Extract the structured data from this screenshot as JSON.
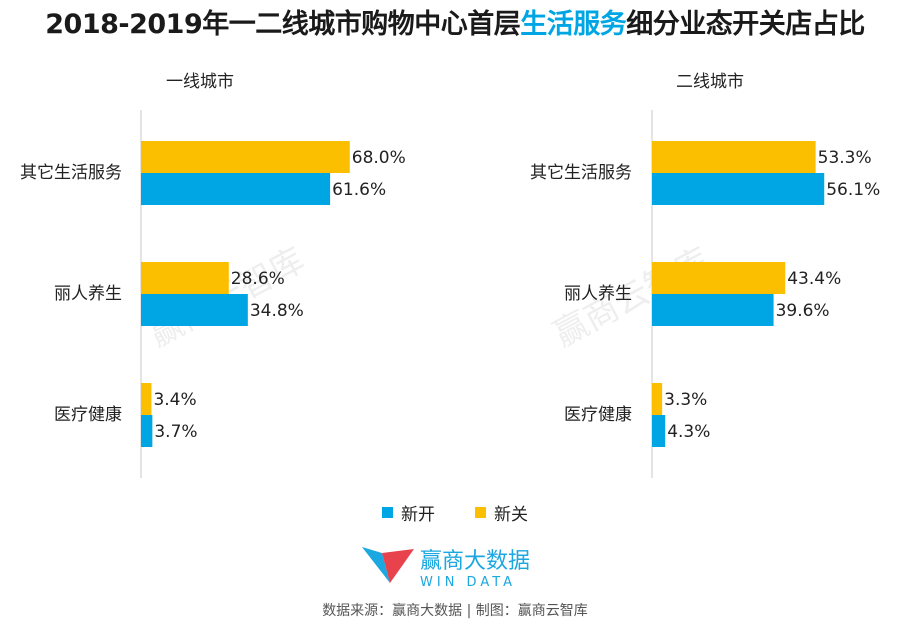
{
  "title": {
    "prefix": "2018-2019年一二线城市购物中心首层",
    "highlight": "生活服务",
    "suffix": "细分业态开关店占比"
  },
  "colors": {
    "new_open": "#00a6e3",
    "new_close": "#fcbf00",
    "title_highlight": "#00a6e3"
  },
  "legend": {
    "open_label": "新开",
    "close_label": "新关"
  },
  "watermark": "赢商云智库",
  "logo": {
    "cn": "赢商大数据",
    "en": "WIN DATA"
  },
  "source": "数据来源：赢商大数据 | 制图：赢商云智库",
  "chart_data": [
    {
      "type": "bar",
      "orientation": "horizontal",
      "title": "一线城市",
      "categories": [
        "其它生活服务",
        "丽人养生",
        "医疗健康"
      ],
      "series": [
        {
          "name": "新关",
          "values": [
            68.0,
            28.6,
            3.4
          ],
          "labels": [
            "68.0%",
            "28.6%",
            "3.4%"
          ]
        },
        {
          "name": "新开",
          "values": [
            61.6,
            34.8,
            3.7
          ],
          "labels": [
            "61.6%",
            "34.8%",
            "3.7%"
          ]
        }
      ],
      "xlim": [
        0,
        100
      ],
      "unit": "%",
      "grid": false
    },
    {
      "type": "bar",
      "orientation": "horizontal",
      "title": "二线城市",
      "categories": [
        "其它生活服务",
        "丽人养生",
        "医疗健康"
      ],
      "series": [
        {
          "name": "新关",
          "values": [
            53.3,
            43.4,
            3.3
          ],
          "labels": [
            "53.3%",
            "43.4%",
            "3.3%"
          ]
        },
        {
          "name": "新开",
          "values": [
            56.1,
            39.6,
            4.3
          ],
          "labels": [
            "56.1%",
            "39.6%",
            "4.3%"
          ]
        }
      ],
      "xlim": [
        0,
        100
      ],
      "unit": "%",
      "grid": false
    }
  ]
}
